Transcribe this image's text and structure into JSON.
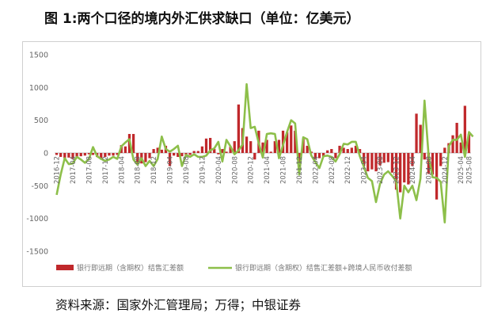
{
  "page": {
    "title": "图 1:两个口径的境内外汇供求缺口（单位：亿美元）",
    "source": "资料来源：国家外汇管理局；万得；中银证券"
  },
  "chart_data": {
    "type": "bar",
    "y_ticks": [
      "1500",
      "1000",
      "500",
      "0",
      "-500",
      "-1000",
      "-1500"
    ],
    "ylim": [
      -1500,
      1500
    ],
    "x_tick_labels": [
      "2016-12",
      "2017-04",
      "2017-08",
      "2017-12",
      "2018-04",
      "2018-08",
      "2018-12",
      "2019-04",
      "2019-08",
      "2019-12",
      "2020-04",
      "2020-08",
      "2020-12",
      "2021-04",
      "2021-08",
      "2021-12",
      "2022-04",
      "2022-08",
      "2022-12",
      "2023-04",
      "2023-08",
      "2023-12",
      "2024-04",
      "2024-08",
      "2024-12",
      "2025-04",
      "2025-08"
    ],
    "legend_position": "bottom",
    "series": [
      {
        "name": "银行即远期（含期权）结售汇差额",
        "type": "bar",
        "color": "#c0282b",
        "values": [
          -30,
          -60,
          -80,
          -70,
          -90,
          -60,
          -50,
          -40,
          -20,
          -30,
          -60,
          -100,
          -60,
          -40,
          -40,
          -30,
          120,
          100,
          290,
          290,
          -180,
          -160,
          -140,
          -80,
          60,
          80,
          50,
          110,
          -200,
          -40,
          -60,
          -50,
          -30,
          -30,
          30,
          30,
          100,
          220,
          230,
          60,
          -20,
          60,
          20,
          100,
          180,
          740,
          380,
          250,
          180,
          -100,
          340,
          160,
          200,
          20,
          180,
          200,
          340,
          320,
          420,
          340,
          -250,
          220,
          110,
          20,
          -90,
          -80,
          -60,
          40,
          60,
          -80,
          110,
          80,
          60,
          80,
          110,
          60,
          -200,
          -280,
          -250,
          -280,
          -190,
          -150,
          -140,
          -300,
          -560,
          -600,
          -450,
          -480,
          -200,
          600,
          430,
          -100,
          -320,
          -330,
          -710,
          -200,
          80,
          150,
          270,
          460,
          160,
          720,
          290
        ]
      },
      {
        "name": "银行即远期（含期权）结售汇差额+跨境人民币收付差额",
        "type": "line",
        "color": "#8dbf4a",
        "values": [
          -640,
          -330,
          -80,
          -170,
          -160,
          -60,
          -100,
          -150,
          -90,
          90,
          -50,
          -90,
          -120,
          -100,
          -60,
          -90,
          100,
          160,
          210,
          -100,
          -180,
          -80,
          -200,
          -120,
          -200,
          -90,
          250,
          60,
          20,
          60,
          110,
          -200,
          -30,
          -60,
          -20,
          -60,
          -60,
          -40,
          40,
          70,
          170,
          -130,
          200,
          100,
          -20,
          40,
          130,
          1050,
          380,
          400,
          150,
          -70,
          290,
          300,
          290,
          -80,
          120,
          320,
          500,
          450,
          -330,
          240,
          210,
          -40,
          -140,
          -230,
          -50,
          -40,
          -60,
          -130,
          -20,
          140,
          130,
          170,
          170,
          -50,
          -210,
          -380,
          -430,
          -750,
          -470,
          -330,
          -280,
          -350,
          -430,
          -1000,
          -500,
          -600,
          -500,
          -720,
          -390,
          800,
          -30,
          -370,
          -380,
          -440,
          -1060,
          100,
          200,
          200,
          280,
          -60,
          320,
          250
        ]
      }
    ]
  }
}
